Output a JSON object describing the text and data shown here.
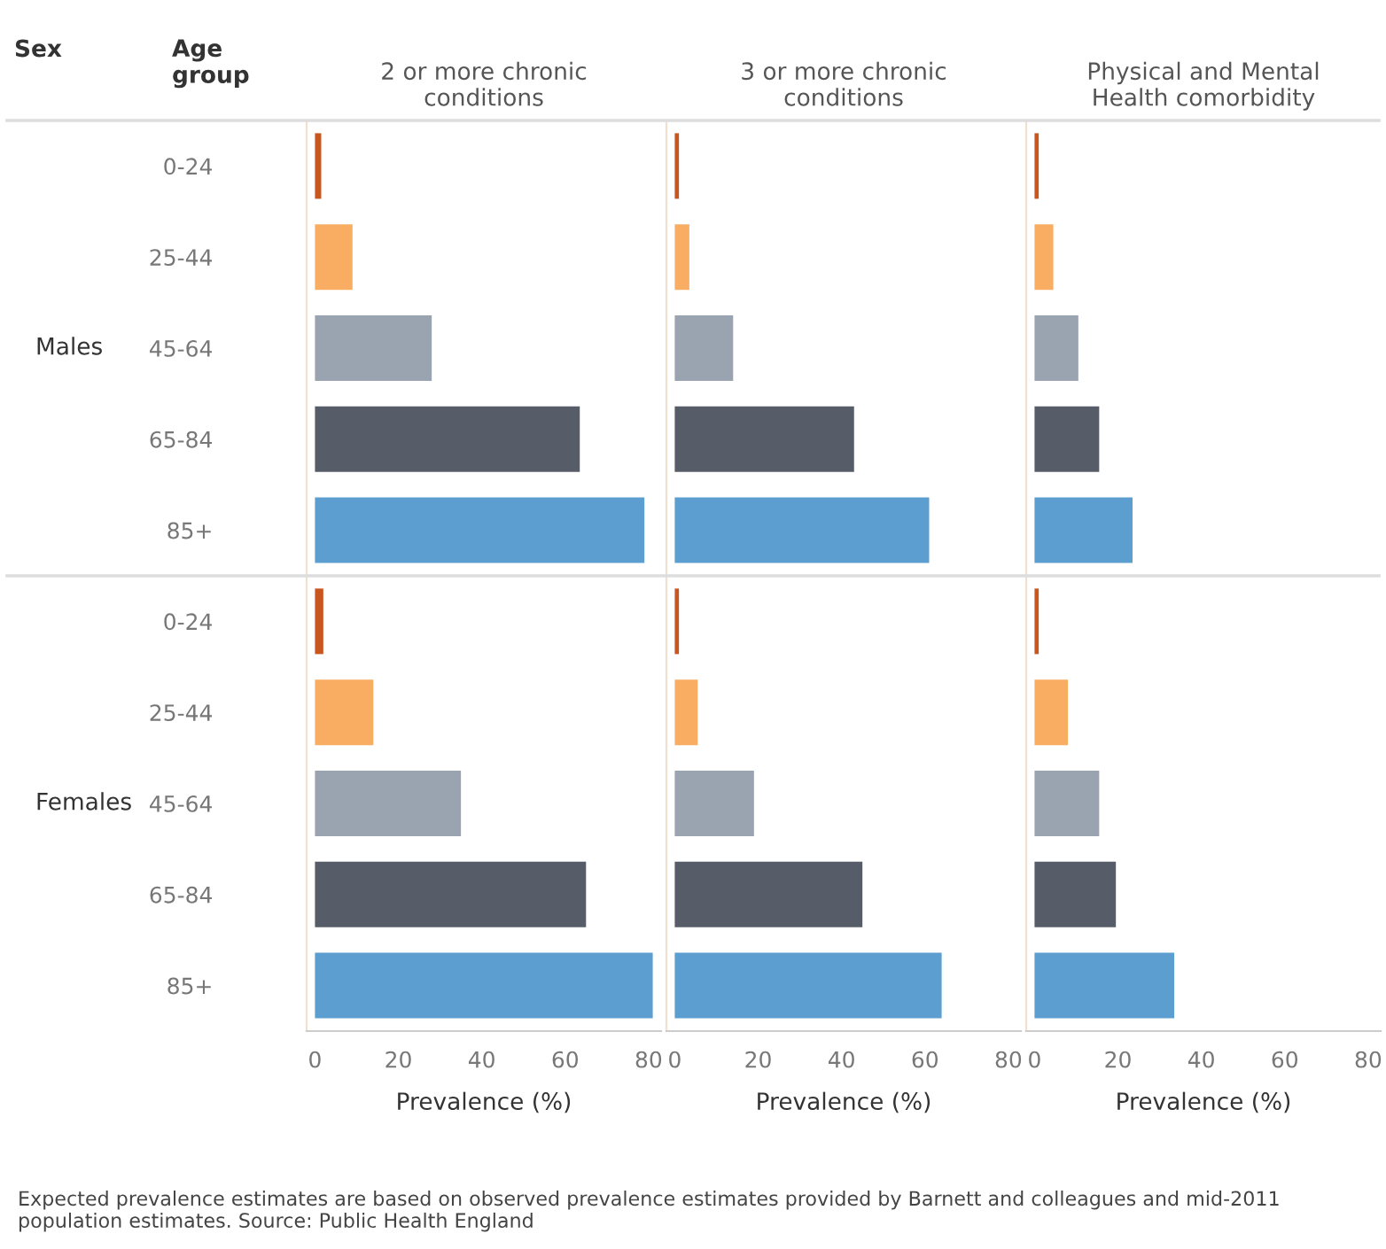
{
  "chart_data": [
    {
      "type": "bar",
      "orientation": "horizontal",
      "title": "2 or more chronic\nconditions",
      "xlabel": "Prevalence (%)",
      "categories": [
        "0-24",
        "25-44",
        "45-64",
        "65-84",
        "85+",
        "0-24",
        "25-44",
        "45-64",
        "65-84",
        "85+"
      ],
      "values": [
        1.5,
        9,
        28,
        63.5,
        79,
        2,
        14,
        35,
        65,
        81
      ],
      "colors": [
        "#c8561e",
        "#f8ad62",
        "#9aa3b0",
        "#565d69",
        "#5b9ecf",
        "#c8561e",
        "#f8ad62",
        "#9aa3b0",
        "#565d69",
        "#5b9ecf"
      ],
      "xlim": [
        -2,
        83
      ],
      "xticks": [
        0,
        20,
        40,
        60,
        80
      ],
      "grid": false,
      "annotations": [
        "Sex",
        "Age\ngroup",
        "Males",
        "Females",
        "Expected prevalence estimates are based on observed prevalence estimates provided by Barnett and colleagues and mid-2011 population estimates. Source: Public Health England"
      ]
    },
    {
      "type": "bar",
      "orientation": "horizontal",
      "title": "3 or more chronic\nconditions",
      "xlabel": "Prevalence (%)",
      "values": [
        1,
        3.5,
        14,
        43,
        61,
        1,
        5.5,
        19,
        45,
        64
      ],
      "categories": [
        null,
        null,
        null,
        null,
        null,
        null,
        null,
        null,
        null,
        null
      ],
      "colors": [
        "#c8561e",
        "#f8ad62",
        "#9aa3b0",
        "#565d69",
        "#5b9ecf",
        "#c8561e",
        "#f8ad62",
        "#9aa3b0",
        "#565d69",
        "#5b9ecf"
      ],
      "xlim": [
        -2,
        83
      ],
      "xticks": [
        0,
        20,
        40,
        60,
        80
      ],
      "grid": false,
      "tick_labels": "x"
    },
    {
      "type": "bar",
      "orientation": "horizontal",
      "title": "Physical and Mental\nHealth comorbidity",
      "xlabel": "Prevalence (%)",
      "values": [
        1,
        4.5,
        10.5,
        15.5,
        23.5,
        1,
        8,
        15.5,
        19.5,
        33.5
      ],
      "categories": [
        null,
        null,
        null,
        null,
        null,
        null,
        null,
        null,
        null,
        null
      ],
      "colors": [
        "#c8561e",
        "#f8ad62",
        "#9aa3b0",
        "#565d69",
        "#5b9ecf",
        "#c8561e",
        "#f8ad62",
        "#9aa3b0",
        "#565d69",
        "#5b9ecf"
      ],
      "xlim": [
        -2,
        83
      ],
      "xticks": [
        0,
        20,
        40,
        60,
        80
      ],
      "grid": false,
      "tick_labels": "x"
    }
  ]
}
